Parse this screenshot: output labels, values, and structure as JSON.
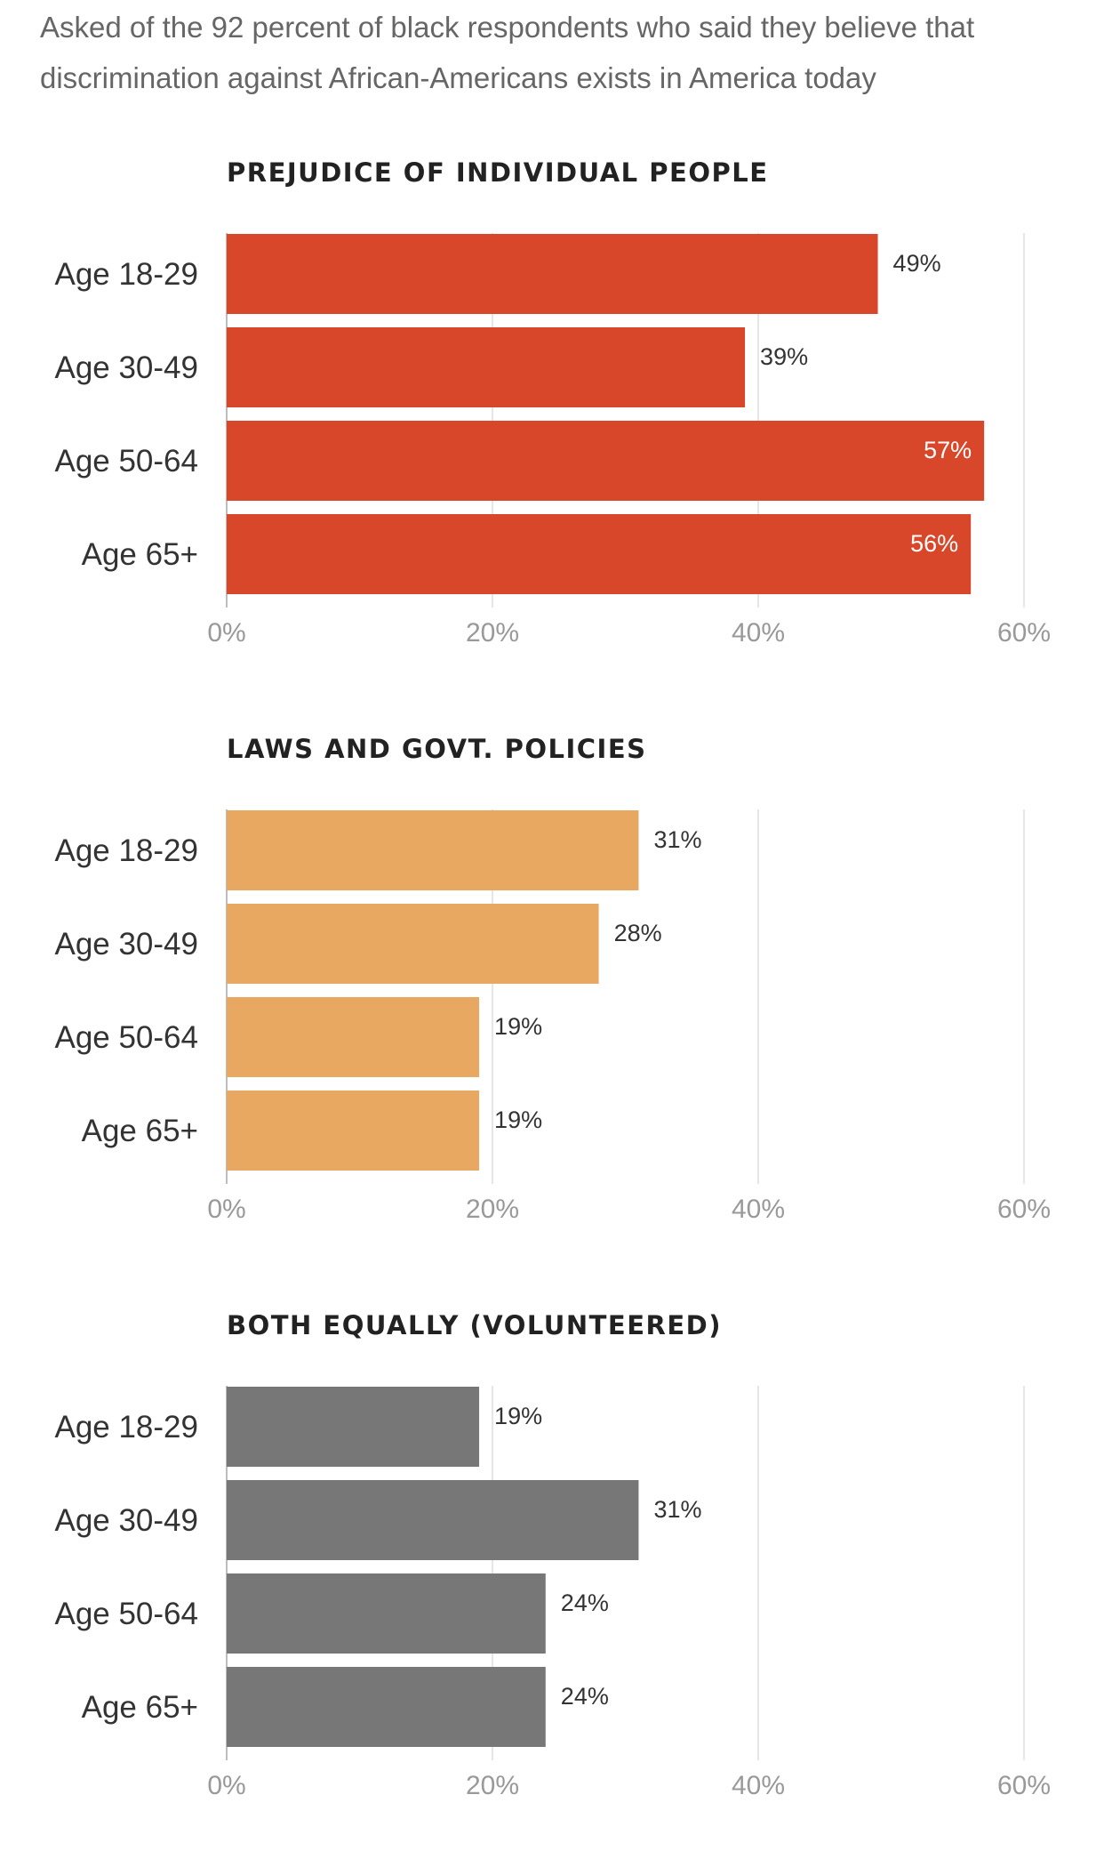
{
  "subtitle": "Asked of the 92 percent of black respondents who said they believe that discrimination against African-Americans exists in America today",
  "chart_data": [
    {
      "type": "bar",
      "orientation": "horizontal",
      "title": "PREJUDICE OF INDIVIDUAL PEOPLE",
      "categories": [
        "Age 18-29",
        "Age 30-49",
        "Age 50-64",
        "Age 65+"
      ],
      "values": [
        49,
        39,
        57,
        56
      ],
      "value_labels": [
        "49%",
        "39%",
        "57%",
        "56%"
      ],
      "xlim": [
        0,
        60
      ],
      "ticks": [
        0,
        20,
        40,
        60
      ],
      "tick_labels": [
        "0%",
        "20%",
        "40%",
        "60%"
      ],
      "color": "#d9472b",
      "grid": true
    },
    {
      "type": "bar",
      "orientation": "horizontal",
      "title": "LAWS AND GOVT. POLICIES",
      "categories": [
        "Age 18-29",
        "Age 30-49",
        "Age 50-64",
        "Age 65+"
      ],
      "values": [
        31,
        28,
        19,
        19
      ],
      "value_labels": [
        "31%",
        "28%",
        "19%",
        "19%"
      ],
      "xlim": [
        0,
        60
      ],
      "ticks": [
        0,
        20,
        40,
        60
      ],
      "tick_labels": [
        "0%",
        "20%",
        "40%",
        "60%"
      ],
      "color": "#e9a862",
      "grid": true
    },
    {
      "type": "bar",
      "orientation": "horizontal",
      "title": "BOTH EQUALLY (VOLUNTEERED)",
      "categories": [
        "Age 18-29",
        "Age 30-49",
        "Age 50-64",
        "Age 65+"
      ],
      "values": [
        19,
        31,
        24,
        24
      ],
      "value_labels": [
        "19%",
        "31%",
        "24%",
        "24%"
      ],
      "xlim": [
        0,
        60
      ],
      "ticks": [
        0,
        20,
        40,
        60
      ],
      "tick_labels": [
        "0%",
        "20%",
        "40%",
        "60%"
      ],
      "color": "#777777",
      "grid": true
    }
  ]
}
